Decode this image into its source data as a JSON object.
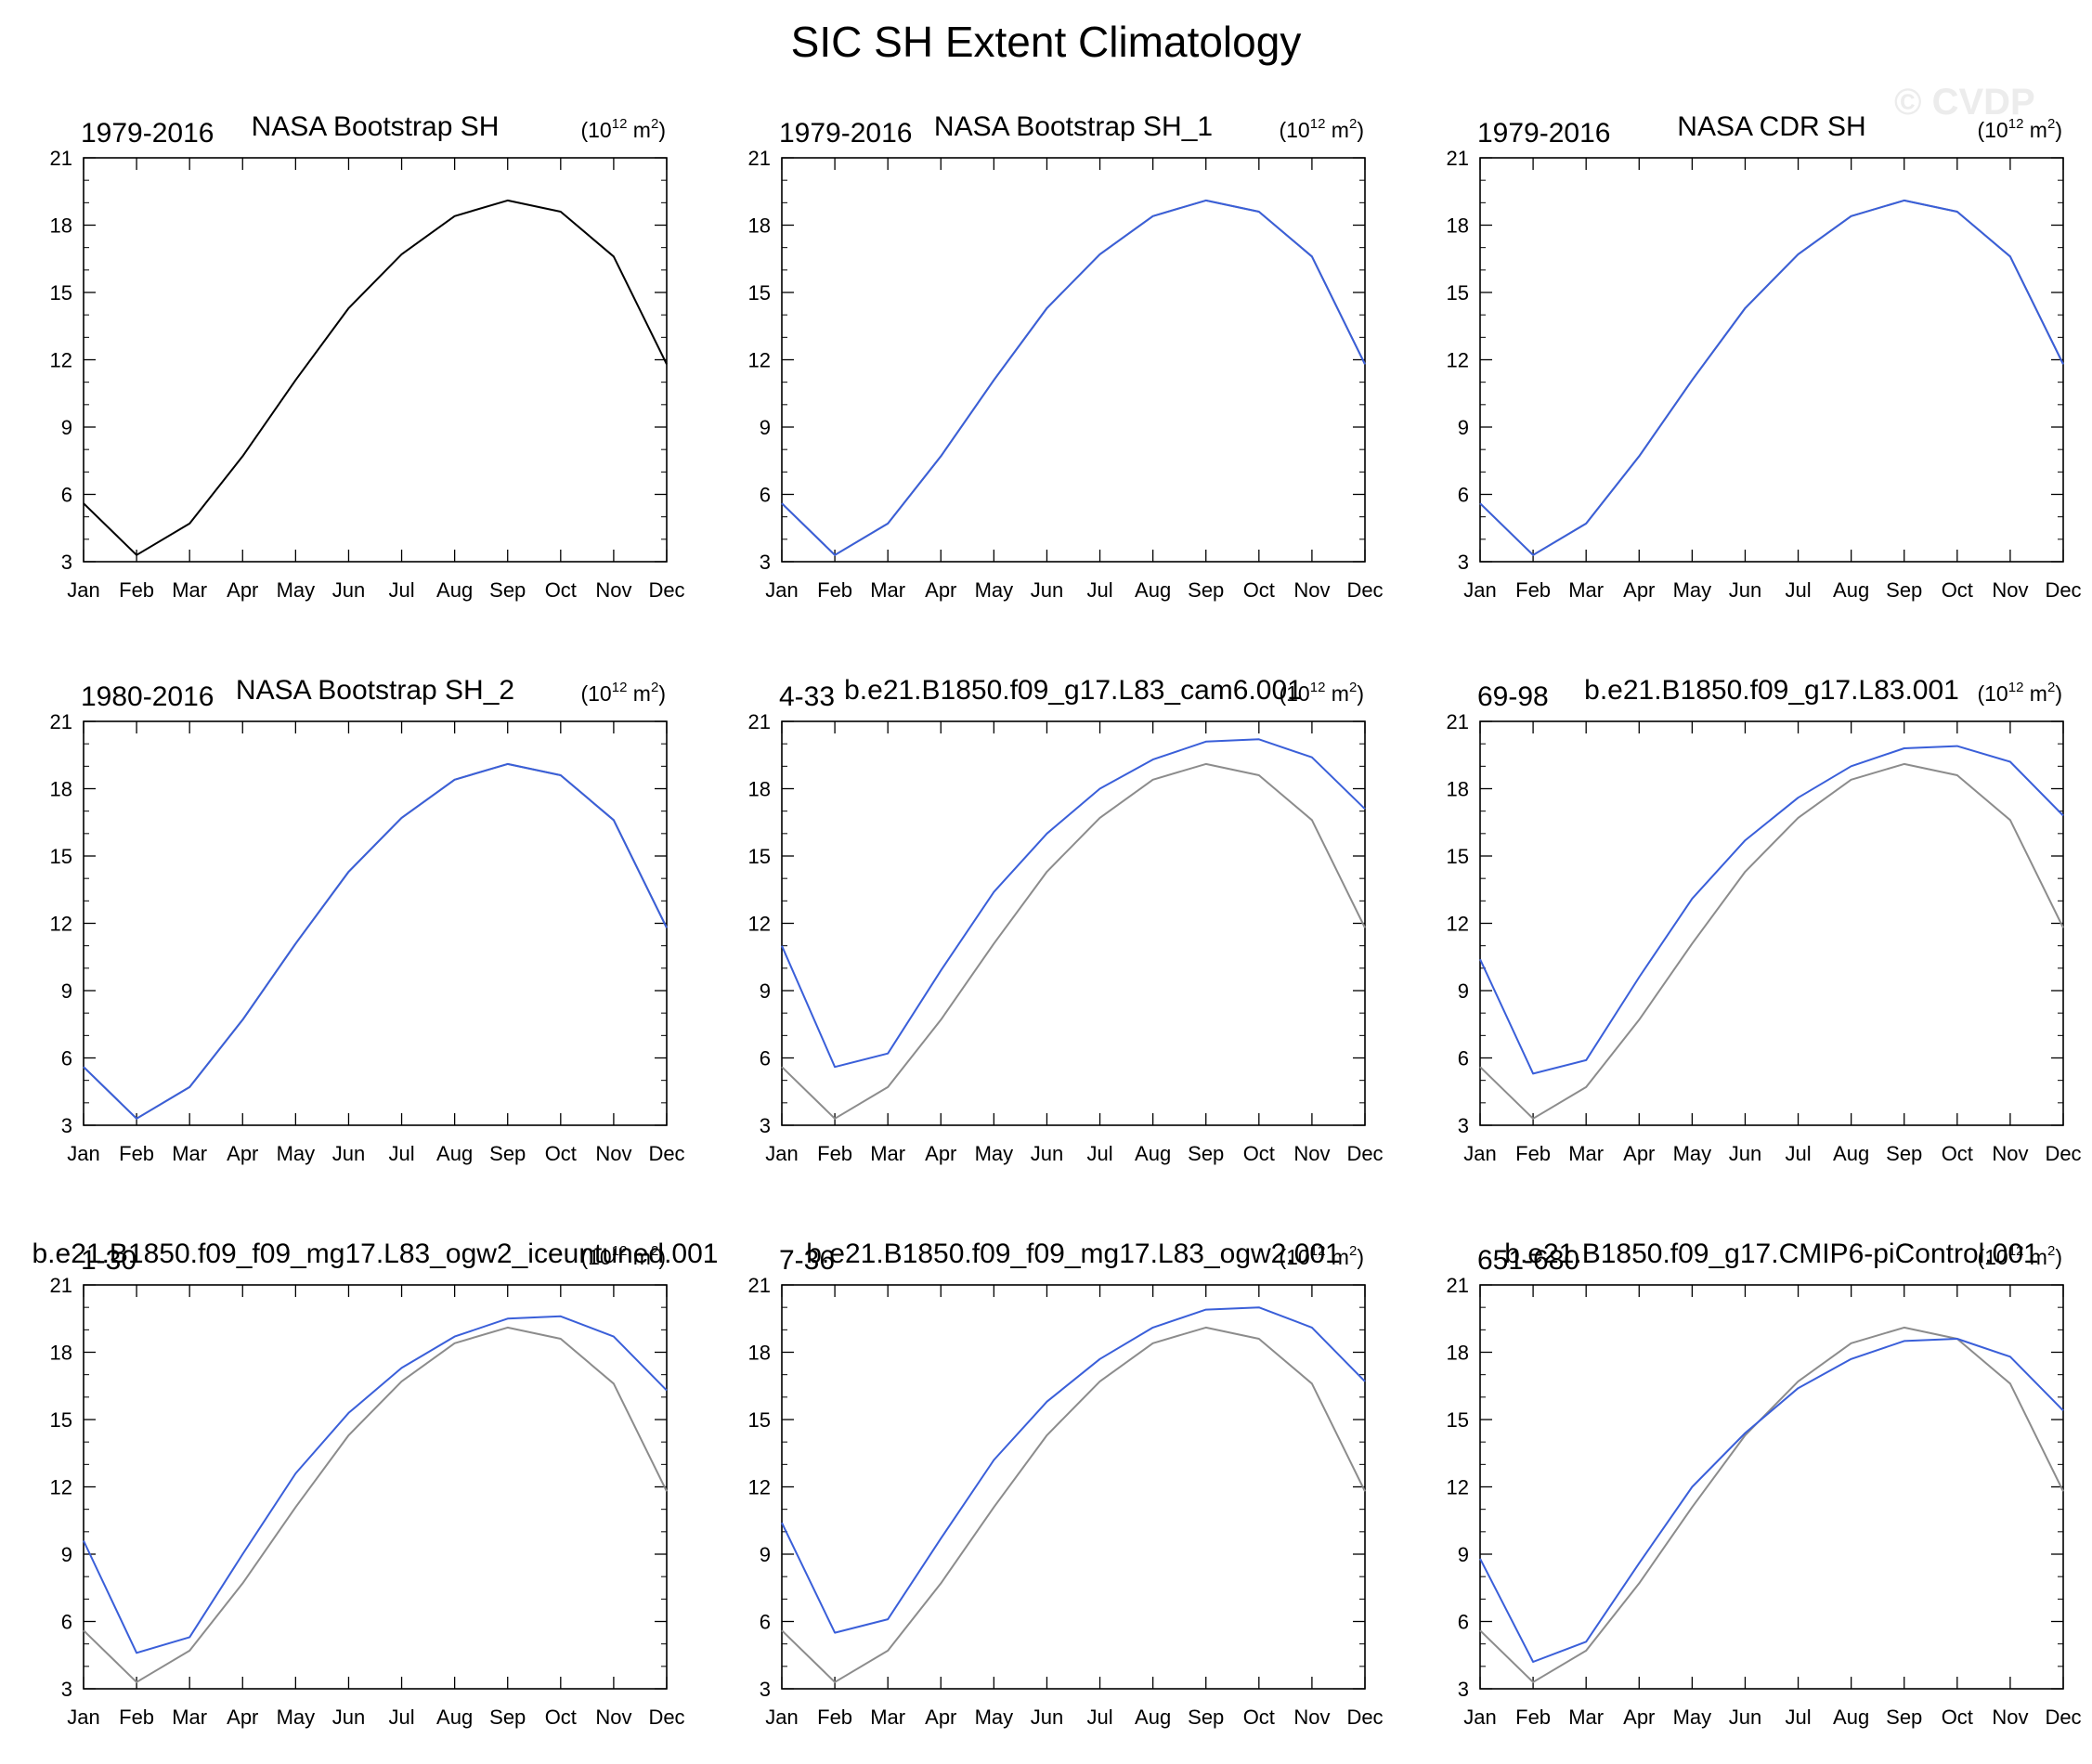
{
  "figure_title": "SIC SH Extent Climatology",
  "watermark": "© CVDP",
  "colors": {
    "model": "#3a5fd9",
    "obs": "#8c8c8c",
    "primary": "#000000"
  },
  "chart_data": [
    {
      "type": "line",
      "title": "NASA Bootstrap SH",
      "left_label": "1979-2016",
      "units_base": "10",
      "units_exp": "12",
      "units_unit": " m",
      "units_unit_exp": "2",
      "categories": [
        "Jan",
        "Feb",
        "Mar",
        "Apr",
        "May",
        "Jun",
        "Jul",
        "Aug",
        "Sep",
        "Oct",
        "Nov",
        "Dec"
      ],
      "ylim": [
        3,
        21
      ],
      "yticks": [
        3,
        6,
        9,
        12,
        15,
        18,
        21
      ],
      "series": [
        {
          "name": "NASA Bootstrap SH",
          "role": "primary",
          "values": [
            5.6,
            3.3,
            4.7,
            7.7,
            11.1,
            14.3,
            16.7,
            18.4,
            19.1,
            18.6,
            16.6,
            11.8
          ]
        }
      ]
    },
    {
      "type": "line",
      "title": "NASA Bootstrap SH_1",
      "left_label": "1979-2016",
      "units_base": "10",
      "units_exp": "12",
      "units_unit": " m",
      "units_unit_exp": "2",
      "categories": [
        "Jan",
        "Feb",
        "Mar",
        "Apr",
        "May",
        "Jun",
        "Jul",
        "Aug",
        "Sep",
        "Oct",
        "Nov",
        "Dec"
      ],
      "ylim": [
        3,
        21
      ],
      "yticks": [
        3,
        6,
        9,
        12,
        15,
        18,
        21
      ],
      "series": [
        {
          "name": "NASA Bootstrap SH_1",
          "role": "model",
          "values": [
            5.6,
            3.3,
            4.7,
            7.7,
            11.1,
            14.3,
            16.7,
            18.4,
            19.1,
            18.6,
            16.6,
            11.8
          ]
        },
        {
          "name": "NASA Bootstrap SH",
          "role": "obs",
          "values": [
            5.6,
            3.3,
            4.7,
            7.7,
            11.1,
            14.3,
            16.7,
            18.4,
            19.1,
            18.6,
            16.6,
            11.8
          ]
        }
      ]
    },
    {
      "type": "line",
      "title": "NASA CDR SH",
      "left_label": "1979-2016",
      "units_base": "10",
      "units_exp": "12",
      "units_unit": " m",
      "units_unit_exp": "2",
      "categories": [
        "Jan",
        "Feb",
        "Mar",
        "Apr",
        "May",
        "Jun",
        "Jul",
        "Aug",
        "Sep",
        "Oct",
        "Nov",
        "Dec"
      ],
      "ylim": [
        3,
        21
      ],
      "yticks": [
        3,
        6,
        9,
        12,
        15,
        18,
        21
      ],
      "series": [
        {
          "name": "NASA CDR SH",
          "role": "model",
          "values": [
            5.6,
            3.3,
            4.7,
            7.7,
            11.1,
            14.3,
            16.7,
            18.4,
            19.1,
            18.6,
            16.6,
            11.8
          ]
        },
        {
          "name": "NASA Bootstrap SH",
          "role": "obs",
          "values": [
            5.6,
            3.3,
            4.7,
            7.7,
            11.1,
            14.3,
            16.7,
            18.4,
            19.1,
            18.6,
            16.6,
            11.8
          ]
        }
      ]
    },
    {
      "type": "line",
      "title": "NASA Bootstrap SH_2",
      "left_label": "1980-2016",
      "units_base": "10",
      "units_exp": "12",
      "units_unit": " m",
      "units_unit_exp": "2",
      "categories": [
        "Jan",
        "Feb",
        "Mar",
        "Apr",
        "May",
        "Jun",
        "Jul",
        "Aug",
        "Sep",
        "Oct",
        "Nov",
        "Dec"
      ],
      "ylim": [
        3,
        21
      ],
      "yticks": [
        3,
        6,
        9,
        12,
        15,
        18,
        21
      ],
      "series": [
        {
          "name": "NASA Bootstrap SH_2",
          "role": "model",
          "values": [
            5.6,
            3.3,
            4.7,
            7.7,
            11.1,
            14.3,
            16.7,
            18.4,
            19.1,
            18.6,
            16.6,
            11.8
          ]
        },
        {
          "name": "NASA Bootstrap SH",
          "role": "obs",
          "values": [
            5.6,
            3.3,
            4.7,
            7.7,
            11.1,
            14.3,
            16.7,
            18.4,
            19.1,
            18.6,
            16.6,
            11.8
          ]
        }
      ]
    },
    {
      "type": "line",
      "title": "b.e21.B1850.f09_g17.L83_cam6.001",
      "left_label": "4-33",
      "units_base": "10",
      "units_exp": "12",
      "units_unit": " m",
      "units_unit_exp": "2",
      "categories": [
        "Jan",
        "Feb",
        "Mar",
        "Apr",
        "May",
        "Jun",
        "Jul",
        "Aug",
        "Sep",
        "Oct",
        "Nov",
        "Dec"
      ],
      "ylim": [
        3,
        21
      ],
      "yticks": [
        3,
        6,
        9,
        12,
        15,
        18,
        21
      ],
      "series": [
        {
          "name": "b.e21.B1850.f09_g17.L83_cam6.001",
          "role": "model",
          "values": [
            11.0,
            5.6,
            6.2,
            9.9,
            13.4,
            16.0,
            18.0,
            19.3,
            20.1,
            20.2,
            19.4,
            17.1
          ]
        },
        {
          "name": "NASA Bootstrap SH",
          "role": "obs",
          "values": [
            5.6,
            3.3,
            4.7,
            7.7,
            11.1,
            14.3,
            16.7,
            18.4,
            19.1,
            18.6,
            16.6,
            11.8
          ]
        }
      ]
    },
    {
      "type": "line",
      "title": "b.e21.B1850.f09_g17.L83.001",
      "left_label": "69-98",
      "units_base": "10",
      "units_exp": "12",
      "units_unit": " m",
      "units_unit_exp": "2",
      "categories": [
        "Jan",
        "Feb",
        "Mar",
        "Apr",
        "May",
        "Jun",
        "Jul",
        "Aug",
        "Sep",
        "Oct",
        "Nov",
        "Dec"
      ],
      "ylim": [
        3,
        21
      ],
      "yticks": [
        3,
        6,
        9,
        12,
        15,
        18,
        21
      ],
      "series": [
        {
          "name": "b.e21.B1850.f09_g17.L83.001",
          "role": "model",
          "values": [
            10.4,
            5.3,
            5.9,
            9.6,
            13.1,
            15.7,
            17.6,
            19.0,
            19.8,
            19.9,
            19.2,
            16.8
          ]
        },
        {
          "name": "NASA Bootstrap SH",
          "role": "obs",
          "values": [
            5.6,
            3.3,
            4.7,
            7.7,
            11.1,
            14.3,
            16.7,
            18.4,
            19.1,
            18.6,
            16.6,
            11.8
          ]
        }
      ]
    },
    {
      "type": "line",
      "title": "b.e21.B1850.f09_f09_mg17.L83_ogw2_iceuntuned.001",
      "left_label": "1-30",
      "units_base": "10",
      "units_exp": "12",
      "units_unit": " m",
      "units_unit_exp": "2",
      "categories": [
        "Jan",
        "Feb",
        "Mar",
        "Apr",
        "May",
        "Jun",
        "Jul",
        "Aug",
        "Sep",
        "Oct",
        "Nov",
        "Dec"
      ],
      "ylim": [
        3,
        21
      ],
      "yticks": [
        3,
        6,
        9,
        12,
        15,
        18,
        21
      ],
      "series": [
        {
          "name": "b.e21.B1850.f09_f09_mg17.L83_ogw2_iceuntuned.001",
          "role": "model",
          "values": [
            9.6,
            4.6,
            5.3,
            9.0,
            12.6,
            15.3,
            17.3,
            18.7,
            19.5,
            19.6,
            18.7,
            16.3
          ]
        },
        {
          "name": "NASA Bootstrap SH",
          "role": "obs",
          "values": [
            5.6,
            3.3,
            4.7,
            7.7,
            11.1,
            14.3,
            16.7,
            18.4,
            19.1,
            18.6,
            16.6,
            11.8
          ]
        }
      ]
    },
    {
      "type": "line",
      "title": "b.e21.B1850.f09_f09_mg17.L83_ogw2.001",
      "left_label": "7-36",
      "units_base": "10",
      "units_exp": "12",
      "units_unit": " m",
      "units_unit_exp": "2",
      "categories": [
        "Jan",
        "Feb",
        "Mar",
        "Apr",
        "May",
        "Jun",
        "Jul",
        "Aug",
        "Sep",
        "Oct",
        "Nov",
        "Dec"
      ],
      "ylim": [
        3,
        21
      ],
      "yticks": [
        3,
        6,
        9,
        12,
        15,
        18,
        21
      ],
      "series": [
        {
          "name": "b.e21.B1850.f09_f09_mg17.L83_ogw2.001",
          "role": "model",
          "values": [
            10.4,
            5.5,
            6.1,
            9.7,
            13.2,
            15.8,
            17.7,
            19.1,
            19.9,
            20.0,
            19.1,
            16.7
          ]
        },
        {
          "name": "NASA Bootstrap SH",
          "role": "obs",
          "values": [
            5.6,
            3.3,
            4.7,
            7.7,
            11.1,
            14.3,
            16.7,
            18.4,
            19.1,
            18.6,
            16.6,
            11.8
          ]
        }
      ]
    },
    {
      "type": "line",
      "title": "b.e21.B1850.f09_g17.CMIP6-piControl.001",
      "left_label": "651-680",
      "units_base": "10",
      "units_exp": "12",
      "units_unit": " m",
      "units_unit_exp": "2",
      "categories": [
        "Jan",
        "Feb",
        "Mar",
        "Apr",
        "May",
        "Jun",
        "Jul",
        "Aug",
        "Sep",
        "Oct",
        "Nov",
        "Dec"
      ],
      "ylim": [
        3,
        21
      ],
      "yticks": [
        3,
        6,
        9,
        12,
        15,
        18,
        21
      ],
      "series": [
        {
          "name": "b.e21.B1850.f09_g17.CMIP6-piControl.001",
          "role": "model",
          "values": [
            8.8,
            4.2,
            5.1,
            8.6,
            12.0,
            14.4,
            16.4,
            17.7,
            18.5,
            18.6,
            17.8,
            15.4
          ]
        },
        {
          "name": "NASA Bootstrap SH",
          "role": "obs",
          "values": [
            5.6,
            3.3,
            4.7,
            7.7,
            11.1,
            14.3,
            16.7,
            18.4,
            19.1,
            18.6,
            16.6,
            11.8
          ]
        }
      ]
    }
  ]
}
